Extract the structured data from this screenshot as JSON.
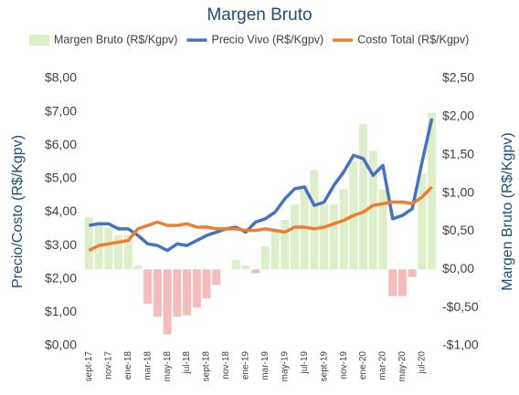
{
  "chart_data": {
    "type": "bar-line",
    "title": "Margen Bruto",
    "y_label": "Precio/Costo (R$/Kgpv)",
    "y2_label": "Margen Bruto (R$/Kgpv)",
    "categories": [
      "sept-17",
      null,
      "nov-17",
      null,
      "ene-18",
      null,
      "mar-18",
      null,
      "may-18",
      null,
      "jul-18",
      null,
      "sept-18",
      null,
      "nov-18",
      null,
      "ene-19",
      null,
      "mar-19",
      null,
      "may-19",
      null,
      "jul-19",
      null,
      "sept-19",
      null,
      "nov-19",
      null,
      "ene-20",
      null,
      "mar-20",
      null,
      "may-20",
      null,
      "jul-20",
      null
    ],
    "series": [
      {
        "name": "Margen Bruto (R$/Kgpv)",
        "type": "bar",
        "axis": "y2",
        "color": "#dcefc9",
        "negative_color": "#f6bcbc",
        "values": [
          0.68,
          0.63,
          0.55,
          0.45,
          0.45,
          0.05,
          -0.45,
          -0.62,
          -0.85,
          -0.62,
          -0.6,
          -0.5,
          -0.38,
          -0.2,
          0,
          0.12,
          0.05,
          -0.05,
          0.3,
          0.5,
          0.65,
          0.85,
          1.1,
          1.3,
          0.85,
          0.85,
          1.05,
          1.42,
          1.9,
          1.55,
          1.05,
          -0.35,
          -0.35,
          -0.1,
          1.25,
          2.05
        ]
      },
      {
        "name": "Precio Vivo (R$/Kgpv)",
        "type": "line",
        "color": "#4472c4",
        "values": [
          3.6,
          3.65,
          3.65,
          3.5,
          3.5,
          3.3,
          3.05,
          3.0,
          2.85,
          3.05,
          3.0,
          3.15,
          3.3,
          3.4,
          3.5,
          3.55,
          3.4,
          3.7,
          3.8,
          4.0,
          4.4,
          4.7,
          4.75,
          4.2,
          4.3,
          4.8,
          5.2,
          5.7,
          5.6,
          5.1,
          5.4,
          3.8,
          3.9,
          4.1,
          5.5,
          6.8
        ]
      },
      {
        "name": "Costo Total (R$/Kgpv)",
        "type": "line",
        "color": "#ed7d31",
        "values": [
          2.85,
          3.0,
          3.05,
          3.1,
          3.15,
          3.5,
          3.6,
          3.7,
          3.6,
          3.6,
          3.65,
          3.55,
          3.55,
          3.5,
          3.5,
          3.5,
          3.45,
          3.45,
          3.5,
          3.45,
          3.4,
          3.55,
          3.55,
          3.5,
          3.55,
          3.65,
          3.75,
          3.9,
          4.0,
          4.2,
          4.25,
          4.3,
          4.3,
          4.25,
          4.45,
          4.75
        ]
      }
    ],
    "ylim": [
      0,
      8
    ],
    "yticks": [
      {
        "value": 0,
        "label": "$0,00"
      },
      {
        "value": 1,
        "label": "$1,00"
      },
      {
        "value": 2,
        "label": "$2,00"
      },
      {
        "value": 3,
        "label": "$3,00"
      },
      {
        "value": 4,
        "label": "$4,00"
      },
      {
        "value": 5,
        "label": "$5,00"
      },
      {
        "value": 6,
        "label": "$6,00"
      },
      {
        "value": 7,
        "label": "$7,00"
      },
      {
        "value": 8,
        "label": "$8,00"
      }
    ],
    "y2lim": [
      -1,
      2.5
    ],
    "y2ticks": [
      {
        "value": -1,
        "label": "-$1,00"
      },
      {
        "value": -0.5,
        "label": "-$0,50"
      },
      {
        "value": 0,
        "label": "$0,00"
      },
      {
        "value": 0.5,
        "label": "$0,50"
      },
      {
        "value": 1,
        "label": "$1,00"
      },
      {
        "value": 1.5,
        "label": "$1,50"
      },
      {
        "value": 2,
        "label": "$2,00"
      },
      {
        "value": 2.5,
        "label": "$2,50"
      }
    ],
    "legend": "top"
  }
}
